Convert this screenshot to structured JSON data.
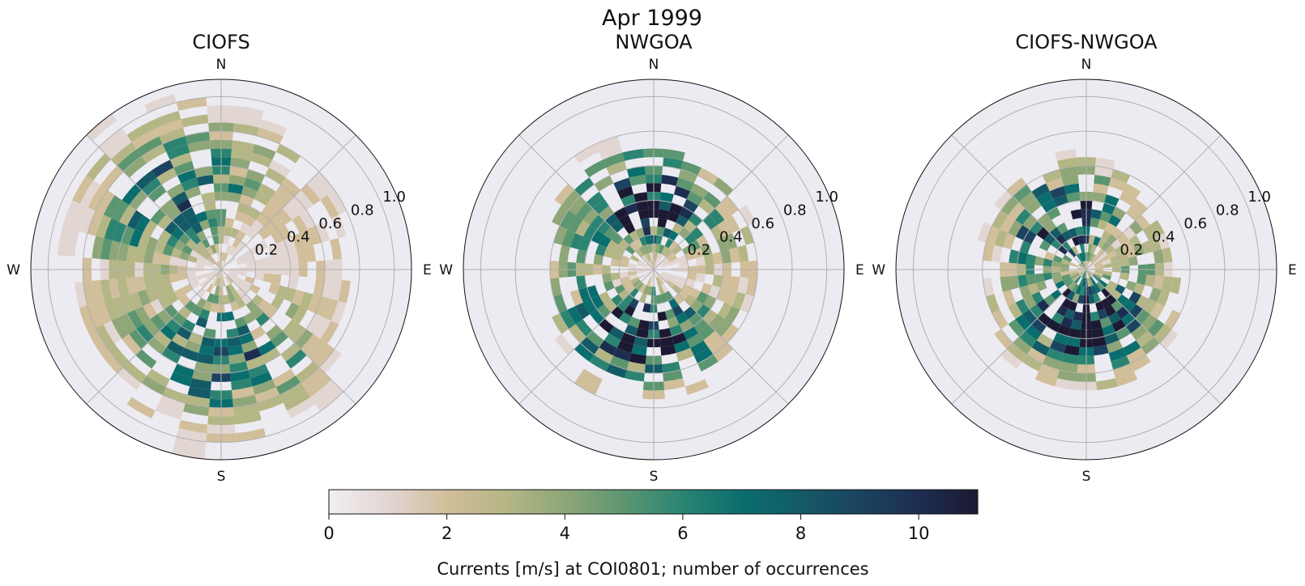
{
  "figure": {
    "suptitle": "Apr 1999"
  },
  "panel_titles": [
    "CIOFS",
    "NWGOA",
    "CIOFS-NWGOA"
  ],
  "direction_labels": {
    "n": "N",
    "e": "E",
    "s": "S",
    "w": "W"
  },
  "radial_ticks": [
    "0.2",
    "0.4",
    "0.6",
    "0.8",
    "1.0"
  ],
  "colorbar": {
    "label": "Currents [m/s] at COI0801; number of occurrences",
    "ticks": [
      "0",
      "2",
      "4",
      "6",
      "8",
      "10"
    ],
    "range": [
      0,
      11
    ]
  },
  "colors": {
    "axes_face": "#ECEBF2",
    "colormap": [
      "#F1EEF2",
      "#E2D6D2",
      "#D1BE9A",
      "#B5B686",
      "#8EA678",
      "#5C9670",
      "#2B8472",
      "#0B6E6E",
      "#145A66",
      "#1B4360",
      "#1D2D50",
      "#1C1933"
    ]
  },
  "chart_data": [
    {
      "type": "polar-histogram",
      "title": "CIOFS",
      "direction_bins": 36,
      "speed_bin_width": 0.05,
      "rlim": [
        0,
        1.1
      ],
      "peak_speed": 0.5,
      "spread": 0.5,
      "amplitude": 7.5,
      "lobes": [
        {
          "direction_deg": 330,
          "weight": 1.0
        },
        {
          "direction_deg": 180,
          "weight": 1.0
        }
      ],
      "seed": 11
    },
    {
      "type": "polar-histogram",
      "title": "NWGOA",
      "direction_bins": 36,
      "speed_bin_width": 0.05,
      "rlim": [
        0,
        1.1
      ],
      "peak_speed": 0.4,
      "spread": 0.34,
      "amplitude": 12,
      "lobes": [
        {
          "direction_deg": 355,
          "weight": 1.0
        },
        {
          "direction_deg": 190,
          "weight": 1.0
        }
      ],
      "seed": 23
    },
    {
      "type": "polar-histogram",
      "title": "CIOFS-NWGOA",
      "direction_bins": 36,
      "speed_bin_width": 0.05,
      "rlim": [
        0,
        1.1
      ],
      "peak_speed": 0.3,
      "spread": 0.36,
      "amplitude": 10,
      "lobes": [
        {
          "direction_deg": 335,
          "weight": 1.0
        },
        {
          "direction_deg": 195,
          "weight": 1.1
        },
        {
          "direction_deg": 135,
          "weight": 0.5
        }
      ],
      "seed": 37
    }
  ]
}
